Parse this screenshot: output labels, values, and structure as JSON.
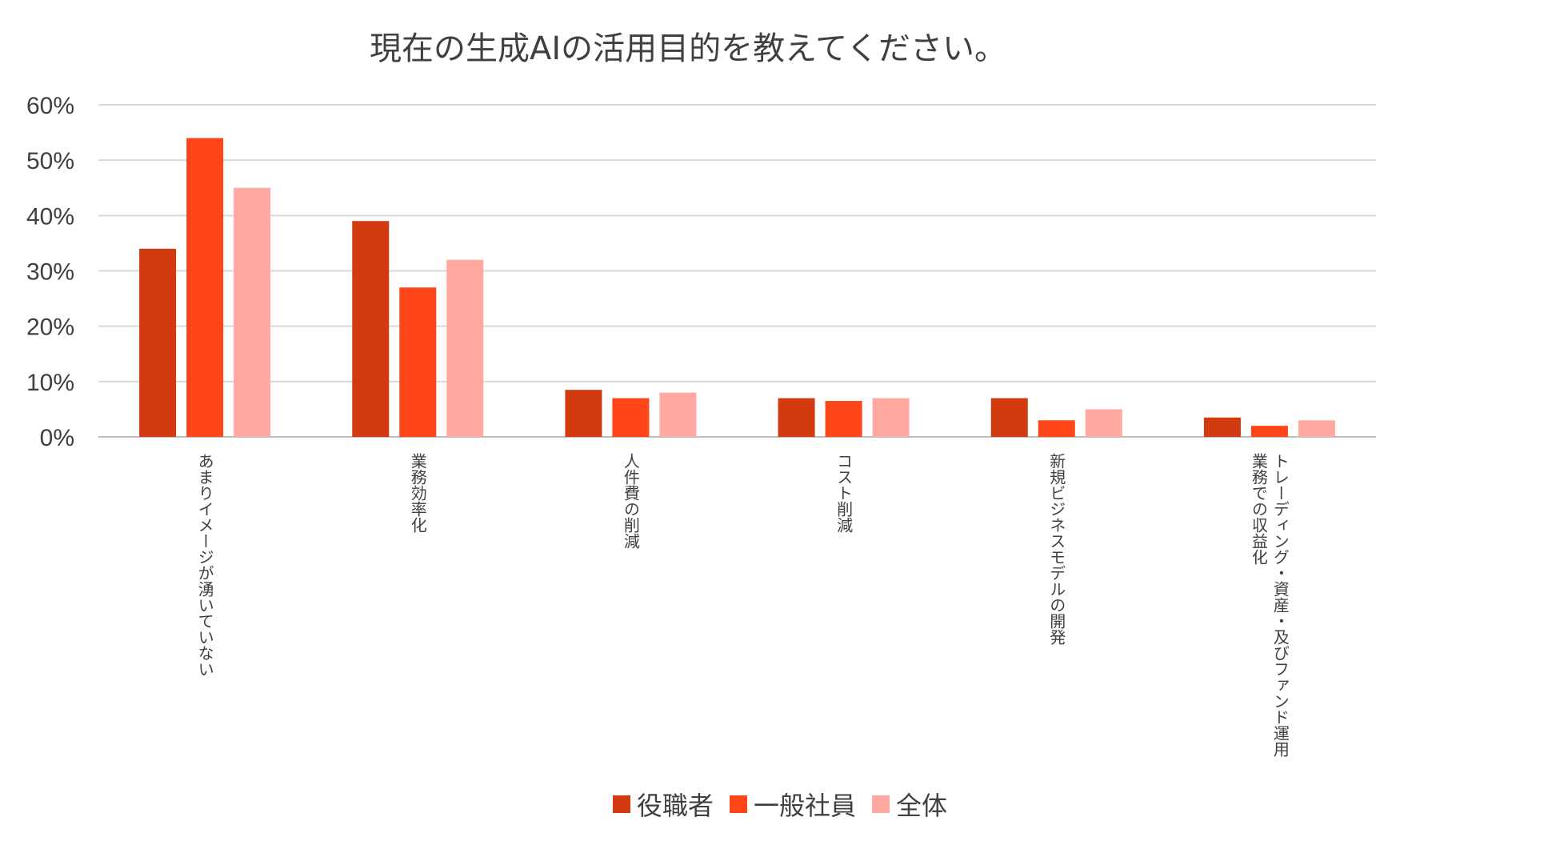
{
  "chart_data": {
    "type": "bar",
    "title": "現在の生成AIの活用目的を教えてください。",
    "categories": [
      [
        "あまりイメージが湧いていない"
      ],
      [
        "業務効率化"
      ],
      [
        "人件費の削減"
      ],
      [
        "コスト削減"
      ],
      [
        "新規ビジネスモデルの開発"
      ],
      [
        "トレーディング・資産・及びファンド運用",
        "業務での収益化"
      ]
    ],
    "series": [
      {
        "name": "役職者",
        "color": "#D23A10",
        "values": [
          34,
          39,
          8.5,
          7,
          7,
          3.5
        ]
      },
      {
        "name": "一般社員",
        "color": "#FF4619",
        "values": [
          54,
          27,
          7,
          6.5,
          3,
          2
        ]
      },
      {
        "name": "全体",
        "color": "#FFA9A1",
        "values": [
          45,
          32,
          8,
          7,
          5,
          3
        ]
      }
    ],
    "ylim": [
      0,
      60
    ],
    "yticks": [
      "0%",
      "10%",
      "20%",
      "30%",
      "40%",
      "50%",
      "60%"
    ],
    "grid": true,
    "legend": "bottom"
  }
}
